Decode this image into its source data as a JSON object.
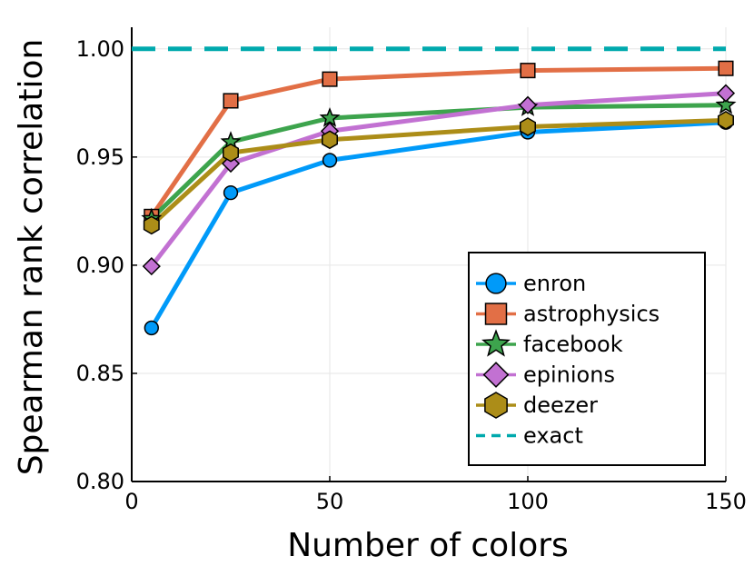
{
  "chart_data": {
    "type": "line",
    "title": "",
    "xlabel": "Number of colors",
    "ylabel": "Spearman rank correlation",
    "xlim": [
      0,
      150
    ],
    "ylim": [
      0.8,
      1.01
    ],
    "xticks": [
      0,
      50,
      100,
      150
    ],
    "xtick_labels": [
      "0",
      "50",
      "100",
      "150"
    ],
    "yticks": [
      0.8,
      0.85,
      0.9,
      0.95,
      1.0
    ],
    "ytick_labels": [
      "0.80",
      "0.85",
      "0.90",
      "0.95",
      "1.00"
    ],
    "grid": true,
    "legend_position": "bottom-right",
    "x": [
      5,
      25,
      50,
      100,
      150
    ],
    "series": [
      {
        "name": "enron",
        "color": "#009af9",
        "marker": "circle",
        "values": [
          0.871,
          0.9335,
          0.9485,
          0.9615,
          0.966
        ]
      },
      {
        "name": "astrophysics",
        "color": "#e26f46",
        "marker": "square",
        "values": [
          0.9225,
          0.976,
          0.986,
          0.99,
          0.991
        ]
      },
      {
        "name": "facebook",
        "color": "#3da44d",
        "marker": "star",
        "values": [
          0.9215,
          0.957,
          0.968,
          0.973,
          0.974
        ]
      },
      {
        "name": "epinions",
        "color": "#c271d2",
        "marker": "diamond",
        "values": [
          0.8995,
          0.947,
          0.962,
          0.974,
          0.9795
        ]
      },
      {
        "name": "deezer",
        "color": "#ac8d18",
        "marker": "hexagon",
        "values": [
          0.9185,
          0.952,
          0.958,
          0.964,
          0.967
        ]
      },
      {
        "name": "exact",
        "color": "#00a9ad",
        "marker": "none",
        "dashed": true,
        "x": [
          0,
          150
        ],
        "values": [
          1.0,
          1.0
        ]
      }
    ]
  }
}
